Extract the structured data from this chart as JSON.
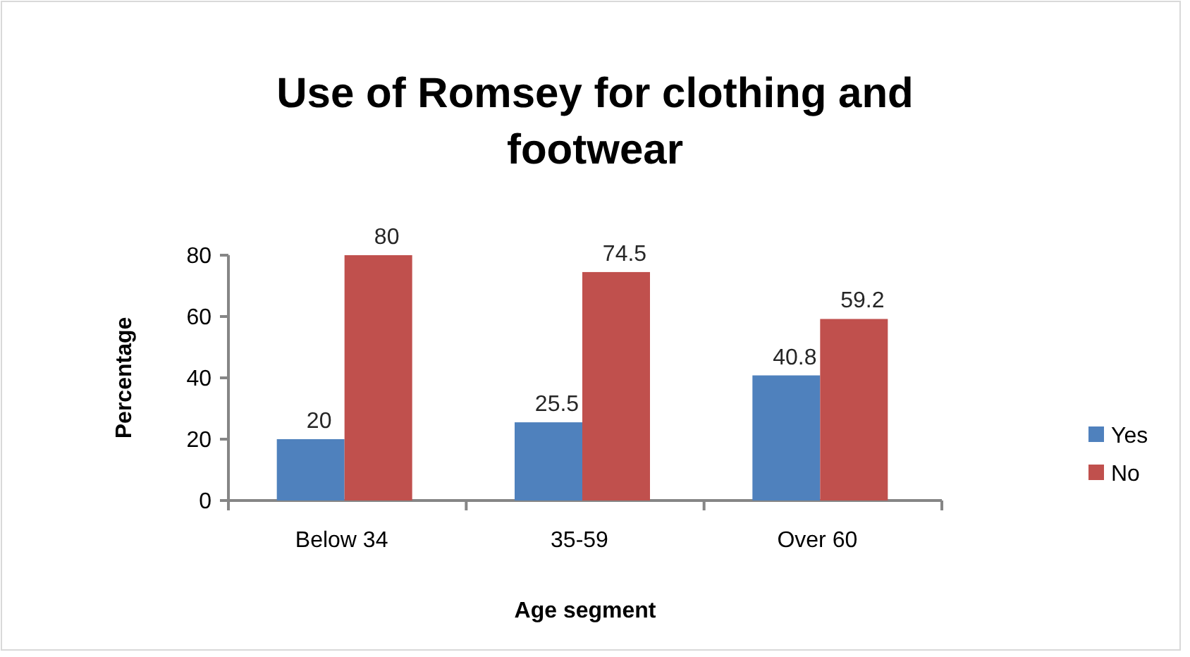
{
  "chart_data": {
    "type": "bar",
    "title": "Use of Romsey for clothing and footwear",
    "xlabel": "Age segment",
    "ylabel": "Percentage",
    "categories": [
      "Below 34",
      "35-59",
      "Over 60"
    ],
    "series": [
      {
        "name": "Yes",
        "color": "#4f81bd",
        "values": [
          20,
          25.5,
          40.8
        ]
      },
      {
        "name": "No",
        "color": "#c0504d",
        "values": [
          80,
          74.5,
          59.2
        ]
      }
    ],
    "ylim": [
      0,
      80
    ],
    "yticks": [
      0,
      20,
      40,
      60,
      80
    ],
    "grid": false,
    "legend": "right",
    "data_labels": true
  }
}
